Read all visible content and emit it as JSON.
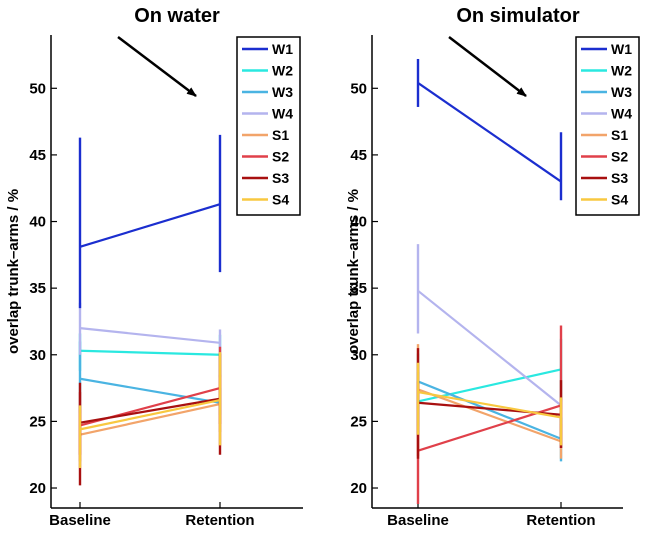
{
  "chart_data": [
    {
      "type": "line",
      "title": "On water",
      "xlabel": "",
      "ylabel": "overlap trunk–arms / %",
      "categories": [
        "Baseline",
        "Retention"
      ],
      "ylim": [
        18.5,
        54
      ],
      "yticks": [
        20,
        25,
        30,
        35,
        40,
        45,
        50
      ],
      "legend_position": "top-right",
      "annotation": "arrow",
      "series": [
        {
          "name": "W1",
          "color": "#1b2ecf",
          "values": [
            38.1,
            41.3
          ],
          "err_low": [
            33.5,
            36.2
          ],
          "err_high": [
            46.3,
            46.5
          ]
        },
        {
          "name": "W2",
          "color": "#2ae8e0",
          "values": [
            30.3,
            30.0
          ],
          "err_low": [
            28.8,
            28.3
          ],
          "err_high": [
            31.6,
            31.5
          ]
        },
        {
          "name": "W3",
          "color": "#4ab4e2",
          "values": [
            28.2,
            26.4
          ],
          "err_low": [
            25.6,
            25.5
          ],
          "err_high": [
            31.0,
            27.5
          ]
        },
        {
          "name": "W4",
          "color": "#b4b4ee",
          "values": [
            32.0,
            30.9
          ],
          "err_low": [
            30.0,
            29.8
          ],
          "err_high": [
            33.9,
            31.9
          ]
        },
        {
          "name": "S1",
          "color": "#f2a46a",
          "values": [
            24.0,
            26.3
          ],
          "err_low": [
            22.0,
            24.2
          ],
          "err_high": [
            25.9,
            28.5
          ]
        },
        {
          "name": "S2",
          "color": "#e0404a",
          "values": [
            24.7,
            27.5
          ],
          "err_low": [
            22.5,
            24.8
          ],
          "err_high": [
            27.2,
            30.6
          ]
        },
        {
          "name": "S3",
          "color": "#a81010",
          "values": [
            24.9,
            26.7
          ],
          "err_low": [
            20.2,
            22.5
          ],
          "err_high": [
            27.9,
            30.1
          ]
        },
        {
          "name": "S4",
          "color": "#f8c840",
          "values": [
            24.4,
            26.6
          ],
          "err_low": [
            21.5,
            23.2
          ],
          "err_high": [
            26.2,
            30.2
          ]
        }
      ]
    },
    {
      "type": "line",
      "title": "On simulator",
      "xlabel": "",
      "ylabel": "overlap trunk–arms / %",
      "categories": [
        "Baseline",
        "Retention"
      ],
      "ylim": [
        18.5,
        54
      ],
      "yticks": [
        20,
        25,
        30,
        35,
        40,
        45,
        50
      ],
      "legend_position": "top-right",
      "annotation": "arrow",
      "series": [
        {
          "name": "W1",
          "color": "#1b2ecf",
          "values": [
            50.4,
            43.0
          ],
          "err_low": [
            48.6,
            41.6
          ],
          "err_high": [
            52.2,
            46.7
          ]
        },
        {
          "name": "W2",
          "color": "#2ae8e0",
          "values": [
            26.5,
            28.9
          ],
          "err_low": [
            24.6,
            26.5
          ],
          "err_high": [
            28.7,
            31.2
          ]
        },
        {
          "name": "W3",
          "color": "#4ab4e2",
          "values": [
            28.0,
            23.7
          ],
          "err_low": [
            24.0,
            22.0
          ],
          "err_high": [
            30.1,
            25.3
          ]
        },
        {
          "name": "W4",
          "color": "#b4b4ee",
          "values": [
            34.8,
            26.2
          ],
          "err_low": [
            31.6,
            25.9
          ],
          "err_high": [
            38.3,
            26.8
          ]
        },
        {
          "name": "S1",
          "color": "#f2a46a",
          "values": [
            27.4,
            23.5
          ],
          "err_low": [
            22.4,
            22.2
          ],
          "err_high": [
            30.8,
            24.8
          ]
        },
        {
          "name": "S2",
          "color": "#e0404a",
          "values": [
            22.8,
            26.2
          ],
          "err_low": [
            18.8,
            23.0
          ],
          "err_high": [
            28.0,
            32.2
          ]
        },
        {
          "name": "S3",
          "color": "#a81010",
          "values": [
            26.4,
            25.5
          ],
          "err_low": [
            22.2,
            23.0
          ],
          "err_high": [
            30.5,
            28.1
          ]
        },
        {
          "name": "S4",
          "color": "#f8c840",
          "values": [
            27.2,
            25.3
          ],
          "err_low": [
            24.0,
            23.2
          ],
          "err_high": [
            29.4,
            26.8
          ]
        }
      ]
    }
  ]
}
